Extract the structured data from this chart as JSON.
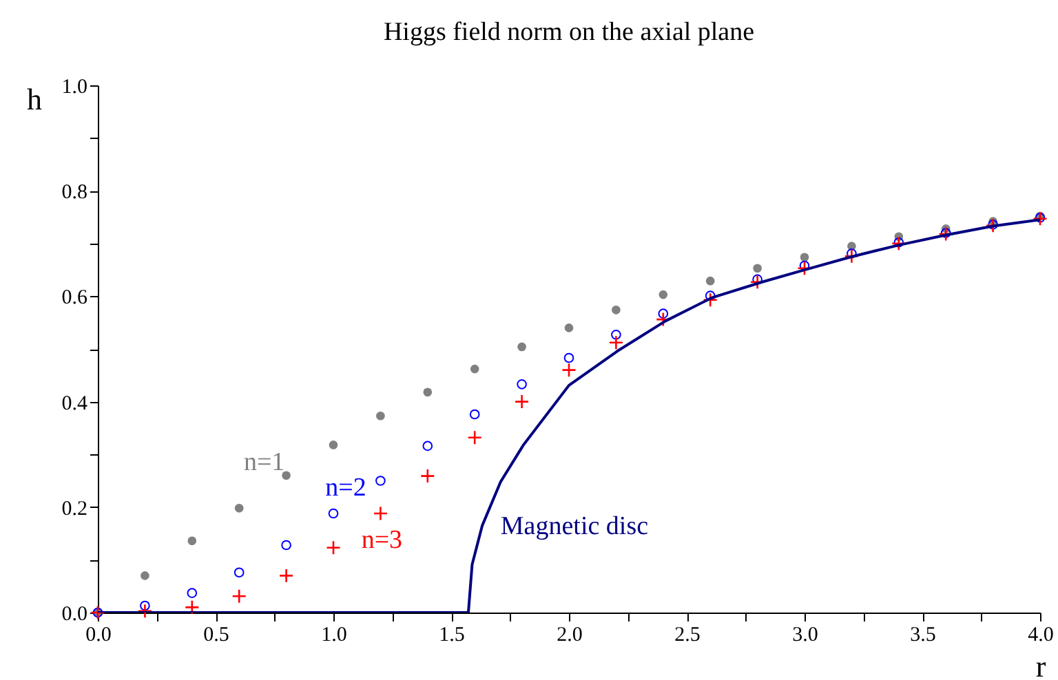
{
  "chart_data": {
    "type": "scatter",
    "title": "Higgs field norm on the axial plane",
    "xlabel": "r",
    "ylabel": "h",
    "x": [
      0,
      0.2,
      0.4,
      0.6,
      0.8,
      1.0,
      1.2,
      1.4,
      1.6,
      1.8,
      2.0,
      2.2,
      2.4,
      2.6,
      2.8,
      3.0,
      3.2,
      3.4,
      3.6,
      3.8,
      4.0
    ],
    "series": [
      {
        "name": "n=1",
        "color": "#808080",
        "marker": "circle",
        "values": [
          0,
          0.07,
          0.136,
          0.198,
          0.26,
          0.318,
          0.373,
          0.418,
          0.462,
          0.504,
          0.54,
          0.574,
          0.603,
          0.629,
          0.653,
          0.674,
          0.695,
          0.713,
          0.728,
          0.742,
          0.752
        ]
      },
      {
        "name": "n=2",
        "color": "#0000ff",
        "marker": "circle",
        "values": [
          0,
          0.013,
          0.037,
          0.076,
          0.128,
          0.188,
          0.25,
          0.316,
          0.376,
          0.433,
          0.483,
          0.527,
          0.567,
          0.601,
          0.632,
          0.658,
          0.681,
          0.702,
          0.72,
          0.736,
          0.749
        ]
      },
      {
        "name": "n=3",
        "color": "#ff0000",
        "marker": "cross",
        "values": [
          0,
          0.003,
          0.01,
          0.031,
          0.07,
          0.123,
          0.188,
          0.259,
          0.332,
          0.4,
          0.46,
          0.512,
          0.556,
          0.593,
          0.627,
          0.653,
          0.676,
          0.7,
          0.718,
          0.734,
          0.747
        ]
      },
      {
        "name": "Magnetic disc",
        "type": "line",
        "color": "#000080",
        "x": [
          0,
          1.573,
          1.589,
          1.632,
          1.71,
          1.807,
          2.0,
          2.206,
          2.41,
          2.606,
          2.82,
          3.0,
          3.2,
          3.4,
          3.6,
          3.8,
          4.0
        ],
        "values": [
          0,
          0,
          0.091,
          0.165,
          0.248,
          0.318,
          0.431,
          0.496,
          0.553,
          0.597,
          0.627,
          0.65,
          0.675,
          0.697,
          0.716,
          0.733,
          0.745
        ]
      }
    ],
    "xlim": [
      0,
      4
    ],
    "ylim": [
      0,
      1
    ],
    "xticks": [
      {
        "value": 0,
        "label": "0.0"
      },
      {
        "value": 0.25,
        "label": null
      },
      {
        "value": 0.5,
        "label": "0.5"
      },
      {
        "value": 0.75,
        "label": null
      },
      {
        "value": 1,
        "label": "1.0"
      },
      {
        "value": 1.25,
        "label": null
      },
      {
        "value": 1.5,
        "label": "1.5"
      },
      {
        "value": 1.75,
        "label": null
      },
      {
        "value": 2,
        "label": "2.0"
      },
      {
        "value": 2.25,
        "label": null
      },
      {
        "value": 2.5,
        "label": "2.5"
      },
      {
        "value": 2.75,
        "label": null
      },
      {
        "value": 3,
        "label": "3.0"
      },
      {
        "value": 3.25,
        "label": null
      },
      {
        "value": 3.5,
        "label": "3.5"
      },
      {
        "value": 3.75,
        "label": null
      },
      {
        "value": 4,
        "label": "4.0"
      }
    ],
    "yticks": [
      {
        "value": 0,
        "label": "0.0"
      },
      {
        "value": 0.1,
        "label": null
      },
      {
        "value": 0.2,
        "label": "0.2"
      },
      {
        "value": 0.3,
        "label": null
      },
      {
        "value": 0.4,
        "label": "0.4"
      },
      {
        "value": 0.5,
        "label": null
      },
      {
        "value": 0.6,
        "label": "0.6"
      },
      {
        "value": 0.7,
        "label": null
      },
      {
        "value": 0.8,
        "label": "0.8"
      },
      {
        "value": 0.9,
        "label": null
      },
      {
        "value": 1,
        "label": "1.0"
      }
    ],
    "grid": false,
    "legend": false
  }
}
